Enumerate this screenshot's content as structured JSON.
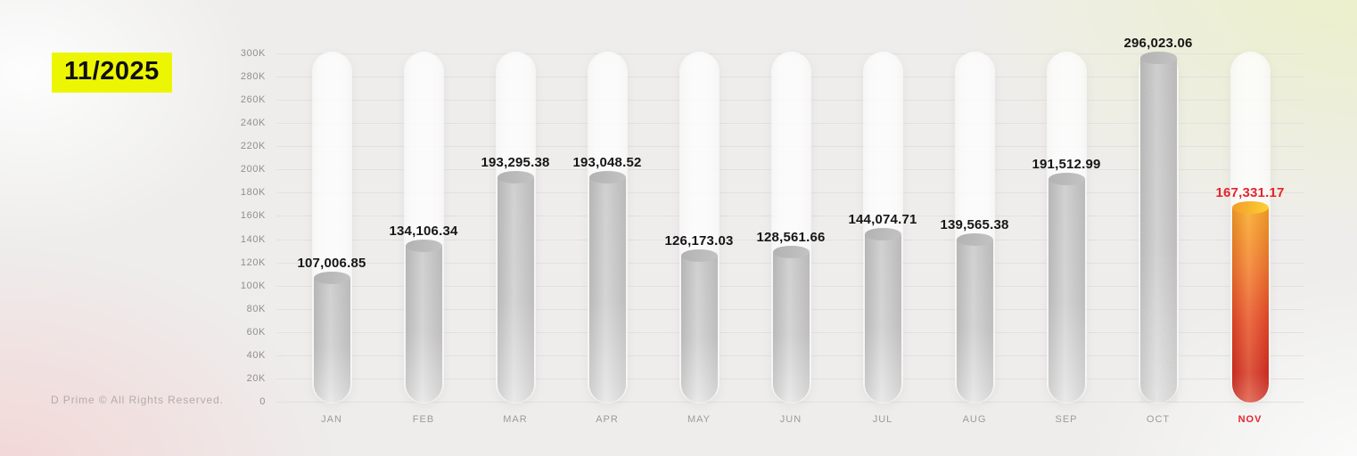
{
  "header": {
    "period": "11/2025",
    "badge_color": "#edf602"
  },
  "footer": {
    "copyright": "D Prime © All Rights Reserved."
  },
  "chart_data": {
    "type": "bar",
    "title": "",
    "xlabel": "",
    "ylabel": "",
    "categories": [
      "JAN",
      "FEB",
      "MAR",
      "APR",
      "MAY",
      "JUN",
      "JUL",
      "AUG",
      "SEP",
      "OCT",
      "NOV"
    ],
    "values": [
      107006.85,
      134106.34,
      193295.38,
      193048.52,
      126173.03,
      128561.66,
      144074.71,
      139565.38,
      191512.99,
      296023.06,
      167331.17
    ],
    "value_labels": [
      "107,006.85",
      "134,106.34",
      "193,295.38",
      "193,048.52",
      "126,173.03",
      "128,561.66",
      "144,074.71",
      "139,565.38",
      "191,512.99",
      "296,023.06",
      "167,331.17"
    ],
    "ylim": [
      0,
      300000
    ],
    "ytick_step": 20000,
    "ytick_labels": [
      "300K",
      "280K",
      "260K",
      "240K",
      "220K",
      "200K",
      "180K",
      "160K",
      "140K",
      "120K",
      "100K",
      "80K",
      "60K",
      "40K",
      "20K",
      "0"
    ],
    "grid": true,
    "legend": false,
    "highlight_index": 10,
    "grain_index": 9,
    "colors": {
      "bar_gray": "#c9c9c9",
      "bar_highlight_top": "#f9a72a",
      "bar_highlight_bottom": "#d32e26",
      "highlight_text": "#e6242b",
      "axis_text": "#8f8f8f"
    }
  }
}
